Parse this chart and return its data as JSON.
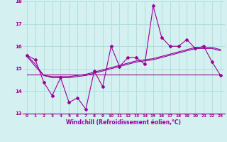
{
  "x": [
    0,
    1,
    2,
    3,
    4,
    5,
    6,
    7,
    8,
    9,
    10,
    11,
    12,
    13,
    14,
    15,
    16,
    17,
    18,
    19,
    20,
    21,
    22,
    23
  ],
  "y_main": [
    15.6,
    15.4,
    14.4,
    13.8,
    14.6,
    13.5,
    13.7,
    13.2,
    14.9,
    14.2,
    16.0,
    15.1,
    15.5,
    15.5,
    15.2,
    17.8,
    16.4,
    16.0,
    16.0,
    16.3,
    15.9,
    16.0,
    15.3,
    14.7
  ],
  "y_trend1": [
    15.6,
    15.2,
    14.7,
    14.65,
    14.65,
    14.65,
    14.7,
    14.75,
    14.85,
    14.95,
    15.05,
    15.15,
    15.25,
    15.35,
    15.4,
    15.45,
    15.55,
    15.65,
    15.75,
    15.85,
    15.95,
    15.95,
    15.95,
    15.85
  ],
  "y_trend2": [
    15.55,
    15.1,
    14.7,
    14.6,
    14.6,
    14.6,
    14.65,
    14.7,
    14.8,
    14.9,
    15.0,
    15.1,
    15.2,
    15.3,
    15.35,
    15.4,
    15.5,
    15.6,
    15.7,
    15.8,
    15.9,
    15.9,
    15.9,
    15.8
  ],
  "y_flat": [
    14.75,
    14.75,
    14.75,
    14.75,
    14.75,
    14.75,
    14.75,
    14.75,
    14.75,
    14.75,
    14.75,
    14.75,
    14.75,
    14.75,
    14.75,
    14.75,
    14.75,
    14.75,
    14.75,
    14.75,
    14.75,
    14.75,
    14.75,
    14.75
  ],
  "line_color": "#990099",
  "background_color": "#d4f0f0",
  "grid_color": "#aadddd",
  "xlabel": "Windchill (Refroidissement éolien,°C)",
  "ylim": [
    13.0,
    18.0
  ],
  "xlim": [
    -0.5,
    23.5
  ],
  "yticks": [
    13,
    14,
    15,
    16,
    17,
    18
  ],
  "xticks": [
    0,
    1,
    2,
    3,
    4,
    5,
    6,
    7,
    8,
    9,
    10,
    11,
    12,
    13,
    14,
    15,
    16,
    17,
    18,
    19,
    20,
    21,
    22,
    23
  ]
}
